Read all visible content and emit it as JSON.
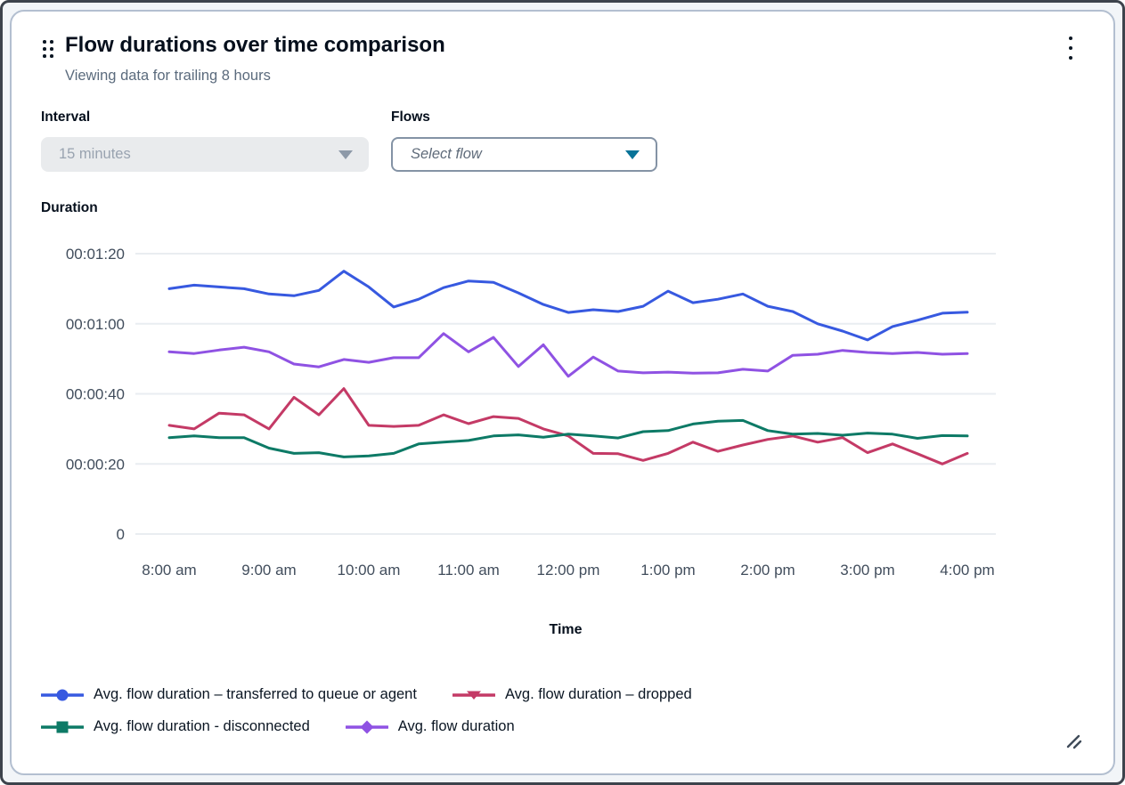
{
  "card": {
    "title": "Flow durations over time comparison",
    "subtitle": "Viewing data for trailing 8 hours"
  },
  "controls": {
    "interval": {
      "label": "Interval",
      "value": "15 minutes",
      "disabled": true
    },
    "flows": {
      "label": "Flows",
      "placeholder": "Select flow"
    }
  },
  "colors": {
    "gridline": "#e9edf1",
    "axis_text": "#414d5c",
    "icon_dark": "#3f4b59",
    "flows_caret": "#077398"
  },
  "chart_data": {
    "type": "line",
    "grid": "horizontal",
    "legend_position": "bottom",
    "y_axis": {
      "label": "Duration",
      "ticks": [
        {
          "label": "00:01:20",
          "seconds": 80
        },
        {
          "label": "00:01:00",
          "seconds": 60
        },
        {
          "label": "00:00:40",
          "seconds": 40
        },
        {
          "label": "00:00:20",
          "seconds": 20
        },
        {
          "label": "0",
          "seconds": 0
        }
      ],
      "ylim_seconds": [
        0,
        85
      ]
    },
    "x_axis": {
      "label": "Time",
      "tick_labels": [
        "8:00 am",
        "9:00 am",
        "10:00 am",
        "11:00 am",
        "12:00 pm",
        "1:00 pm",
        "2:00 pm",
        "3:00 pm",
        "4:00 pm"
      ],
      "start": "8:00 am",
      "end": "4:00 pm",
      "interval_minutes": 15,
      "points_per_tick": 4
    },
    "series": [
      {
        "name": "Avg. flow duration – transferred to queue or agent",
        "color": "#3759e0",
        "marker": "circle",
        "values_seconds": [
          70,
          71,
          70.5,
          70,
          68.5,
          68,
          69.5,
          75,
          70.5,
          64.8,
          67,
          70.3,
          72.2,
          71.8,
          68.8,
          65.5,
          63.2,
          64,
          63.5,
          65,
          69.3,
          66,
          67,
          68.5,
          65,
          63.5,
          60,
          57.9,
          55.4,
          59.2,
          61,
          63,
          63.3
        ]
      },
      {
        "name": "Avg. flow duration – dropped",
        "color": "#c43a66",
        "marker": "triangle-down",
        "values_seconds": [
          31,
          30,
          34.5,
          34,
          30,
          39,
          34,
          41.5,
          31,
          30.7,
          31,
          34,
          31.5,
          33.5,
          33,
          30,
          28,
          23,
          22.9,
          21,
          23,
          26.2,
          23.6,
          25.4,
          27,
          28,
          26.2,
          27.5,
          23.2,
          25.7,
          22.9,
          20,
          23
        ]
      },
      {
        "name": "Avg. flow duration - disconnected",
        "color": "#0d7a66",
        "marker": "square",
        "values_seconds": [
          27.5,
          28,
          27.5,
          27.5,
          24.5,
          23,
          23.2,
          22,
          22.3,
          23,
          25.7,
          26.2,
          26.7,
          28,
          28.3,
          27.6,
          28.5,
          28,
          27.4,
          29.2,
          29.5,
          31.4,
          32.2,
          32.4,
          29.5,
          28.5,
          28.7,
          28.2,
          28.8,
          28.5,
          27.3,
          28.1,
          28
        ]
      },
      {
        "name": "Avg. flow duration",
        "color": "#8f52e3",
        "marker": "diamond",
        "values_seconds": [
          52,
          51.5,
          52.5,
          53.3,
          52,
          48.5,
          47.7,
          49.8,
          49,
          50.3,
          50.3,
          57.2,
          52,
          56.1,
          47.8,
          54,
          45,
          50.5,
          46.5,
          46,
          46.2,
          45.9,
          46,
          47,
          46.5,
          51,
          51.3,
          52.4,
          51.8,
          51.5,
          51.8,
          51.3,
          51.5
        ]
      }
    ]
  }
}
